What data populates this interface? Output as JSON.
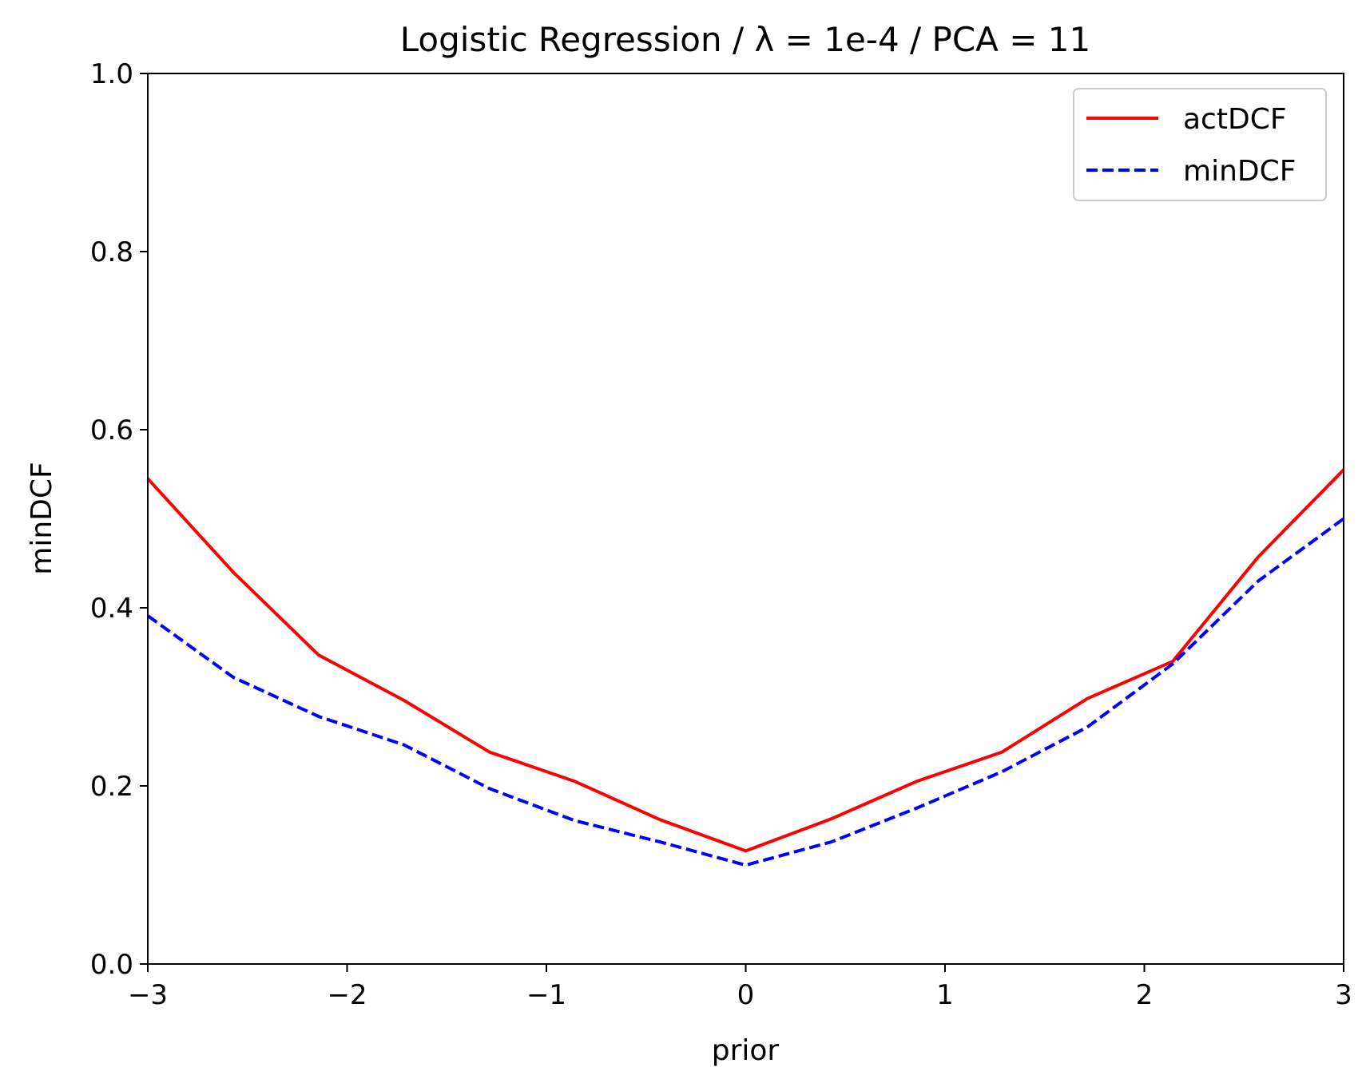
{
  "chart_data": {
    "type": "line",
    "title": "Logistic Regression / λ = 1e-4 / PCA = 11",
    "xlabel": "prior",
    "ylabel": "minDCF",
    "xlim": [
      -3,
      3
    ],
    "ylim": [
      0,
      1
    ],
    "xticks": [
      -3,
      -2,
      -1,
      0,
      1,
      2,
      3
    ],
    "xtick_labels": [
      "−3",
      "−2",
      "−1",
      "0",
      "1",
      "2",
      "3"
    ],
    "yticks": [
      0.0,
      0.2,
      0.4,
      0.6,
      0.8,
      1.0
    ],
    "ytick_labels": [
      "0.0",
      "0.2",
      "0.4",
      "0.6",
      "0.8",
      "1.0"
    ],
    "grid": false,
    "legend_position": "top-right",
    "x": [
      -3.0,
      -2.571,
      -2.143,
      -1.714,
      -1.286,
      -0.857,
      -0.429,
      0.0,
      0.429,
      0.857,
      1.286,
      1.714,
      2.143,
      2.571,
      3.0
    ],
    "series": [
      {
        "name": "actDCF",
        "color": "#ff0000",
        "linestyle": "solid",
        "values": [
          0.545,
          0.44,
          0.347,
          0.296,
          0.238,
          0.205,
          0.162,
          0.127,
          0.163,
          0.205,
          0.238,
          0.298,
          0.34,
          0.457,
          0.555
        ]
      },
      {
        "name": "minDCF",
        "color": "#0000ff",
        "linestyle": "dashed",
        "values": [
          0.391,
          0.322,
          0.278,
          0.246,
          0.197,
          0.161,
          0.137,
          0.111,
          0.137,
          0.175,
          0.216,
          0.266,
          0.337,
          0.43,
          0.5
        ]
      }
    ]
  }
}
